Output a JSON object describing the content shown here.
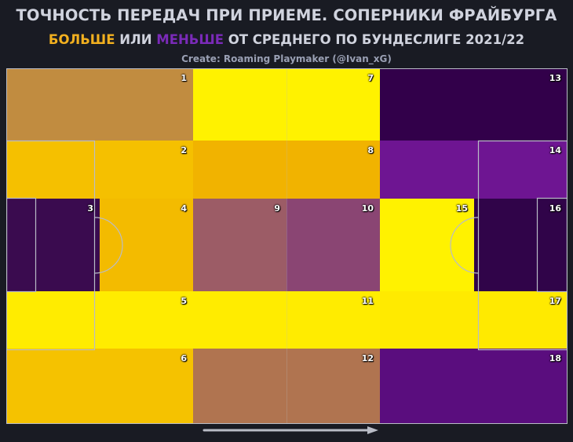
{
  "header": {
    "title": "ТОЧНОСТЬ ПЕРЕДАЧ ПРИ ПРИЕМЕ. СОПЕРНИКИ ФРАЙБУРГА",
    "more": "БОЛЬШЕ",
    "or": "ИЛИ",
    "less": "МЕНЬШЕ",
    "rest": "ОТ СРЕДНЕГО ПО БУНДЕСЛИГЕ 2021/22",
    "credit": "Create: Roaming Playmaker (@Ivan_xG)"
  },
  "colors": {
    "background": "#191b23",
    "more": "#f2b01f",
    "less": "#7a2ab8",
    "lines": "#b9bcc6"
  },
  "zones": [
    {
      "id": "1",
      "color": "#c18c40"
    },
    {
      "id": "2",
      "color": "#f5c000"
    },
    {
      "id": "3",
      "color": "#3a0b4f"
    },
    {
      "id": "4",
      "color": "#f3bb00"
    },
    {
      "id": "5",
      "color": "#ffec00"
    },
    {
      "id": "6",
      "color": "#f5c200"
    },
    {
      "id": "7",
      "color": "#fff200"
    },
    {
      "id": "8",
      "color": "#f1b300"
    },
    {
      "id": "9",
      "color": "#9c5c66"
    },
    {
      "id": "10",
      "color": "#8a4573"
    },
    {
      "id": "11",
      "color": "#ffec00"
    },
    {
      "id": "12",
      "color": "#b07450"
    },
    {
      "id": "13",
      "color": "#32004a"
    },
    {
      "id": "14",
      "color": "#6e1592"
    },
    {
      "id": "15",
      "color": "#fff200"
    },
    {
      "id": "16",
      "color": "#300449"
    },
    {
      "id": "17",
      "color": "#ffea00"
    },
    {
      "id": "18",
      "color": "#5a0d7e"
    }
  ]
}
